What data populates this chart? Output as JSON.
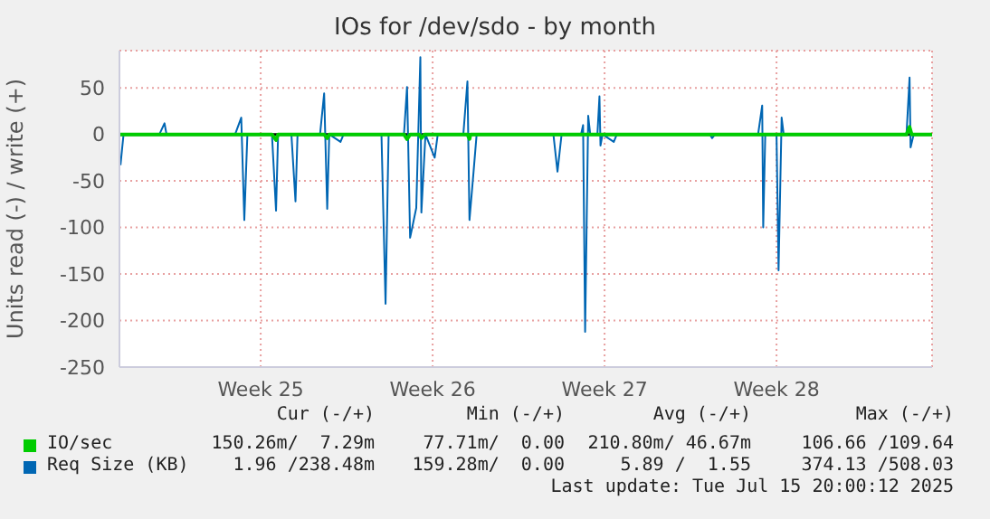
{
  "chart_data": {
    "type": "line",
    "title": "IOs for /dev/sdo - by month",
    "ylabel": "Units read (-) / write (+)",
    "xlim": [
      "2025-06-12T18:00",
      "2025-07-15T20:00"
    ],
    "xticks": [
      {
        "value": "2025-06-18T12:00",
        "label": "Week 25"
      },
      {
        "value": "2025-06-25T12:00",
        "label": "Week 26"
      },
      {
        "value": "2025-07-02T12:00",
        "label": "Week 27"
      },
      {
        "value": "2025-07-09T12:00",
        "label": "Week 28"
      }
    ],
    "ylim": [
      -250,
      90
    ],
    "yticks": [
      -250,
      -200,
      -150,
      -100,
      -50,
      0,
      50
    ],
    "grid": true,
    "legend": "bottom",
    "marker": "none",
    "line_style": "solid",
    "ref_lines": [
      {
        "axis": "y",
        "value": 0,
        "color": "#000000"
      }
    ],
    "series": [
      {
        "name": "IO/sec",
        "color": "#00cc00",
        "x": [
          "2025-06-12T18:00",
          "2025-06-18T23:00",
          "2025-06-19T03:00",
          "2025-06-19T05:00",
          "2025-06-21T02:00",
          "2025-06-21T05:00",
          "2025-06-21T07:00",
          "2025-06-24T08:00",
          "2025-06-24T11:00",
          "2025-06-24T14:00",
          "2025-06-24T23:00",
          "2025-06-25T01:00",
          "2025-06-25T04:00",
          "2025-06-26T22:00",
          "2025-06-27T00:00",
          "2025-06-27T01:00",
          "2025-07-14T19:00",
          "2025-07-14T22:00",
          "2025-07-15T00:00",
          "2025-07-15T20:00"
        ],
        "values": [
          0,
          0,
          -6,
          0,
          0,
          -4,
          0,
          0,
          -5,
          0,
          0,
          -4,
          0,
          0,
          -5,
          0,
          0,
          8,
          0,
          0
        ]
      },
      {
        "name": "Req Size (KB)",
        "color": "#0066b3",
        "x": [
          "2025-06-12T19:00",
          "2025-06-12T22:00",
          "2025-06-14T09:00",
          "2025-06-14T14:00",
          "2025-06-14T16:00",
          "2025-06-17T11:00",
          "2025-06-17T17:00",
          "2025-06-17T20:00",
          "2025-06-17T23:00",
          "2025-06-18T23:00",
          "2025-06-19T03:00",
          "2025-06-19T05:00",
          "2025-06-19T18:00",
          "2025-06-19T22:00",
          "2025-06-20T00:00",
          "2025-06-20T22:00",
          "2025-06-21T02:00",
          "2025-06-21T05:00",
          "2025-06-21T07:00",
          "2025-06-21T18:00",
          "2025-06-21T21:00",
          "2025-06-23T10:00",
          "2025-06-23T14:00",
          "2025-06-23T17:00",
          "2025-06-24T08:00",
          "2025-06-24T11:00",
          "2025-06-24T14:00",
          "2025-06-24T20:00",
          "2025-06-25T00:00",
          "2025-06-25T01:00",
          "2025-06-25T05:00",
          "2025-06-25T14:00",
          "2025-06-25T17:00",
          "2025-06-26T18:00",
          "2025-06-26T22:00",
          "2025-06-27T00:00",
          "2025-06-27T04:00",
          "2025-06-27T07:00",
          "2025-06-30T10:00",
          "2025-06-30T14:00",
          "2025-06-30T18:00",
          "2025-07-01T13:00",
          "2025-07-01T15:00",
          "2025-07-01T17:00",
          "2025-07-01T20:00",
          "2025-07-01T22:00",
          "2025-07-02T05:00",
          "2025-07-02T07:00",
          "2025-07-02T08:00",
          "2025-07-02T10:00",
          "2025-07-02T21:00",
          "2025-07-03T00:00",
          "2025-07-06T19:00",
          "2025-07-06T21:00",
          "2025-07-07T00:00",
          "2025-07-08T18:00",
          "2025-07-08T22:00",
          "2025-07-08T23:00",
          "2025-07-09T01:00",
          "2025-07-09T12:00",
          "2025-07-09T14:00",
          "2025-07-09T17:00",
          "2025-07-09T19:00",
          "2025-07-14T19:00",
          "2025-07-14T22:00",
          "2025-07-14T23:00",
          "2025-07-15T02:00",
          "2025-07-15T20:00"
        ],
        "values": [
          -33,
          0,
          0,
          12,
          0,
          0,
          18,
          -92,
          0,
          0,
          -82,
          0,
          0,
          -72,
          0,
          0,
          44,
          -80,
          0,
          -8,
          0,
          0,
          -182,
          0,
          0,
          51,
          -111,
          -79,
          83,
          -84,
          0,
          -25,
          0,
          0,
          57,
          -92,
          -40,
          0,
          0,
          -40,
          0,
          0,
          10,
          -212,
          20,
          0,
          0,
          41,
          -12,
          0,
          -8,
          0,
          0,
          -4,
          0,
          0,
          31,
          -100,
          0,
          0,
          -146,
          18,
          0,
          0,
          61,
          -14,
          0,
          0
        ]
      }
    ],
    "annotations": [
      "Cur (-/+)",
      "Min (-/+)",
      "Avg (-/+)",
      "Max (-/+)",
      "150.26m/  7.29m",
      "77.71m/  0.00",
      "210.80m/ 46.67m",
      "106.66 /109.64",
      "1.96 /238.48m",
      "159.28m/  0.00",
      "5.89 /  1.55",
      "374.13 /508.03",
      "Last update: Tue Jul 15 20:00:12 2025"
    ]
  }
}
